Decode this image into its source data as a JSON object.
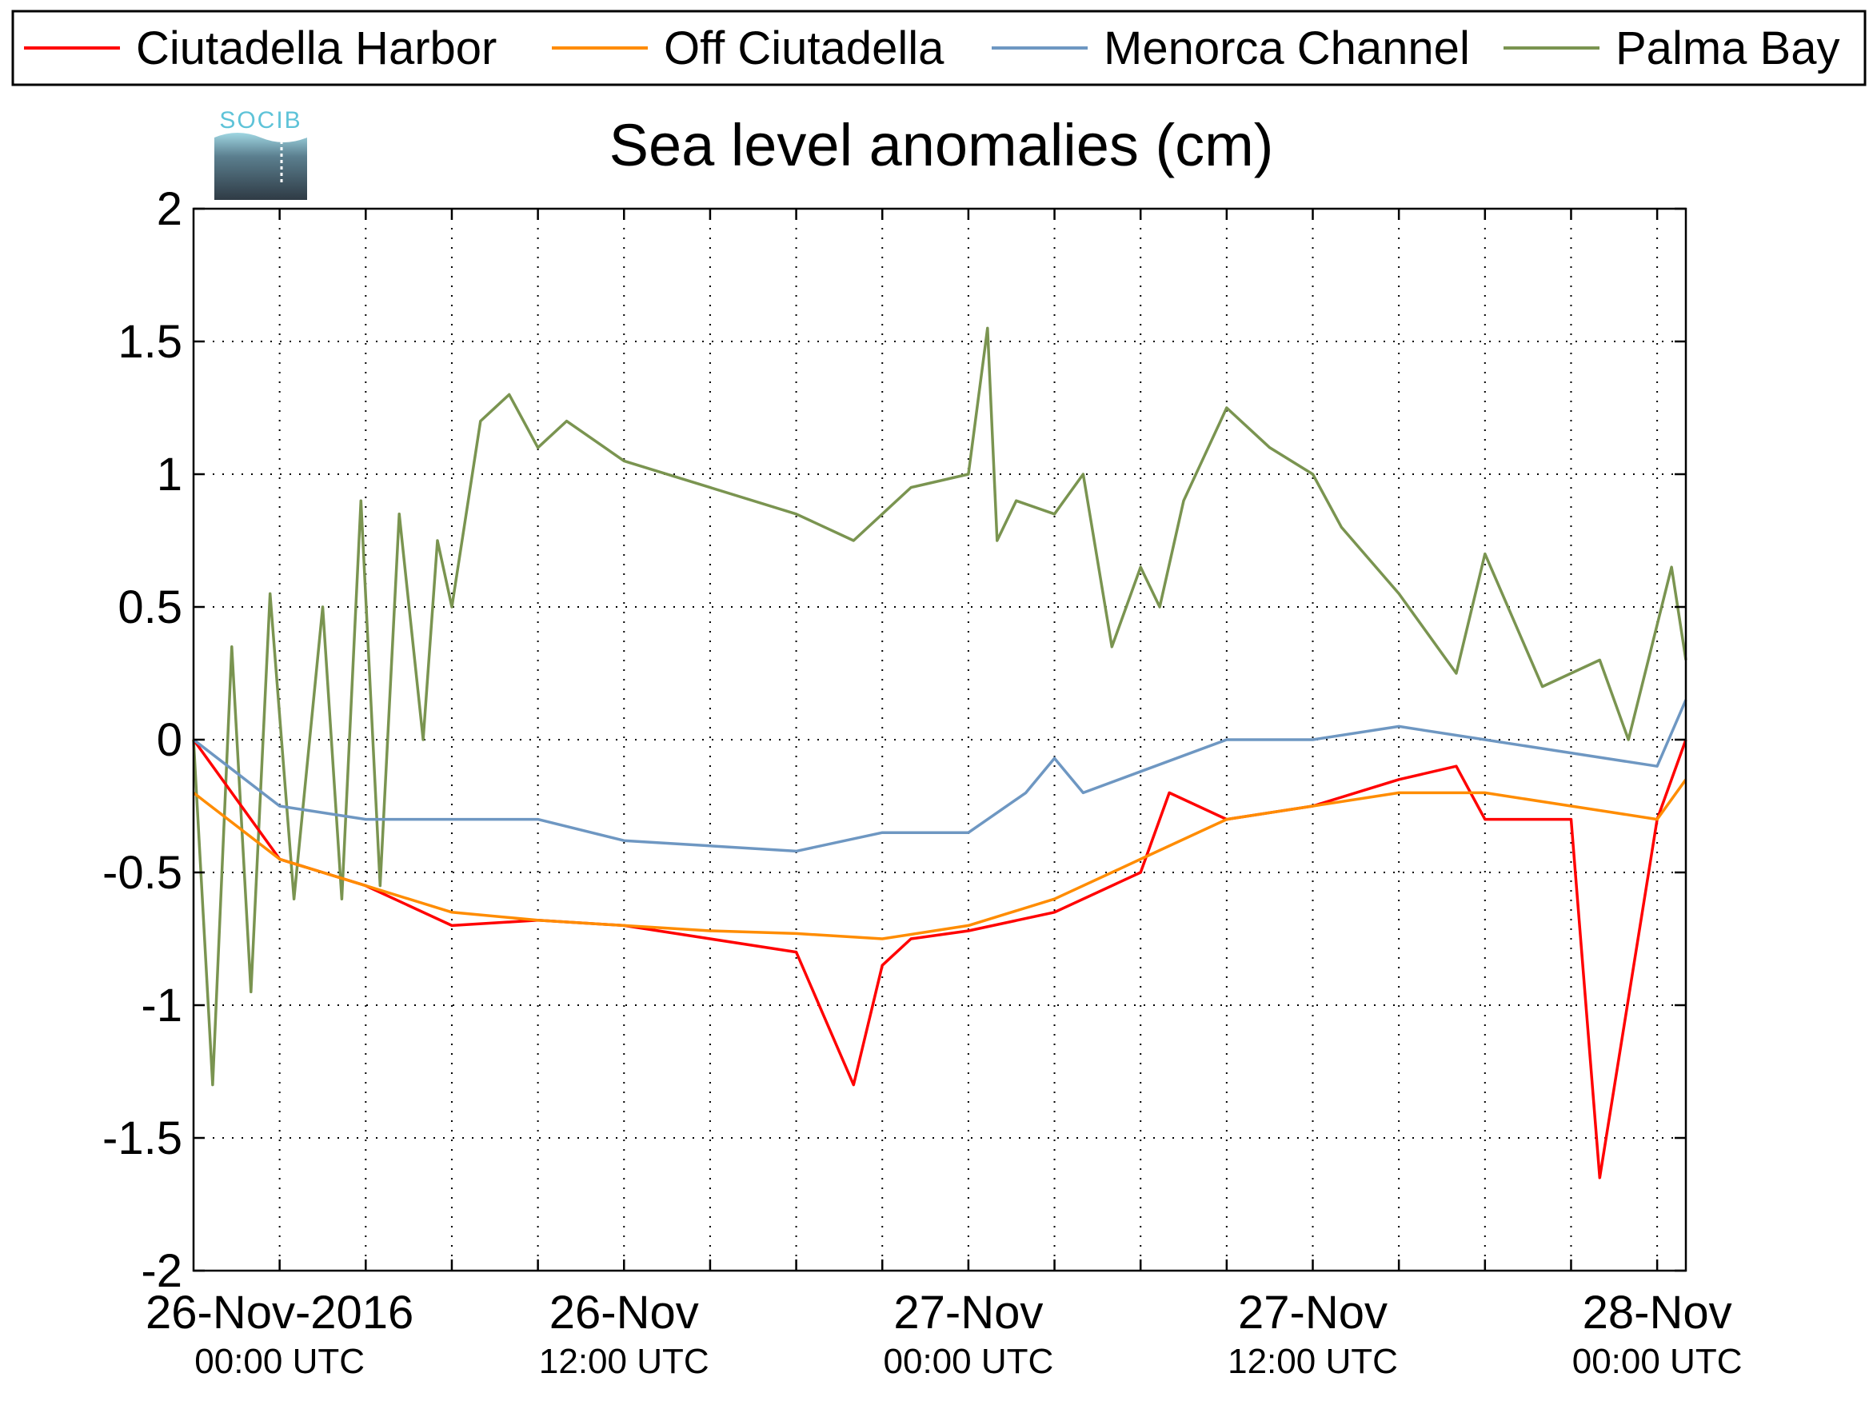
{
  "logo": {
    "text": "SOCIB"
  },
  "chart_data": {
    "type": "line",
    "title": "Sea level anomalies (cm)",
    "xlabel": "",
    "ylabel": "",
    "ylim": [
      -2,
      2
    ],
    "xlim": [
      "2016-11-25T21:00Z",
      "2016-11-28T01:00Z"
    ],
    "y_ticks": [
      -2,
      -1.5,
      -1,
      -0.5,
      0,
      0.5,
      1,
      1.5,
      2
    ],
    "y_tick_labels": [
      "-2",
      "-1.5",
      "-1",
      "-0.5",
      "0",
      "0.5",
      "1",
      "1.5",
      "2"
    ],
    "x_ticks": [
      {
        "time": "2016-11-26T00:00Z",
        "label": "26-Nov-2016",
        "sublabel": "00:00 UTC"
      },
      {
        "time": "2016-11-26T12:00Z",
        "label": "26-Nov",
        "sublabel": "12:00 UTC"
      },
      {
        "time": "2016-11-27T00:00Z",
        "label": "27-Nov",
        "sublabel": "00:00 UTC"
      },
      {
        "time": "2016-11-27T12:00Z",
        "label": "27-Nov",
        "sublabel": "12:00 UTC"
      },
      {
        "time": "2016-11-28T00:00Z",
        "label": "28-Nov",
        "sublabel": "00:00 UTC"
      }
    ],
    "x_minor_ticks": [
      "2016-11-26T03:00Z",
      "2016-11-26T06:00Z",
      "2016-11-26T09:00Z",
      "2016-11-26T15:00Z",
      "2016-11-26T18:00Z",
      "2016-11-26T21:00Z",
      "2016-11-27T03:00Z",
      "2016-11-27T06:00Z",
      "2016-11-27T09:00Z",
      "2016-11-27T15:00Z",
      "2016-11-27T18:00Z",
      "2016-11-27T21:00Z"
    ],
    "grid": true,
    "legend_position": "top",
    "series": [
      {
        "name": "Ciutadella Harbor",
        "color": "#ff0000",
        "x": [
          "2016-11-25T21:00Z",
          "2016-11-26T00:00Z",
          "2016-11-26T03:00Z",
          "2016-11-26T06:00Z",
          "2016-11-26T09:00Z",
          "2016-11-26T12:00Z",
          "2016-11-26T15:00Z",
          "2016-11-26T18:00Z",
          "2016-11-26T20:00Z",
          "2016-11-26T21:00Z",
          "2016-11-26T22:00Z",
          "2016-11-27T00:00Z",
          "2016-11-27T03:00Z",
          "2016-11-27T06:00Z",
          "2016-11-27T07:00Z",
          "2016-11-27T09:00Z",
          "2016-11-27T12:00Z",
          "2016-11-27T15:00Z",
          "2016-11-27T17:00Z",
          "2016-11-27T18:00Z",
          "2016-11-27T21:00Z",
          "2016-11-27T22:00Z",
          "2016-11-28T00:00Z",
          "2016-11-28T01:00Z"
        ],
        "y": [
          0.0,
          -0.45,
          -0.55,
          -0.7,
          -0.68,
          -0.7,
          -0.75,
          -0.8,
          -1.3,
          -0.85,
          -0.75,
          -0.72,
          -0.65,
          -0.5,
          -0.2,
          -0.3,
          -0.25,
          -0.15,
          -0.1,
          -0.3,
          -0.3,
          -1.65,
          -0.3,
          0.0
        ]
      },
      {
        "name": "Off Ciutadella",
        "color": "#ff8c00",
        "x": [
          "2016-11-25T21:00Z",
          "2016-11-26T00:00Z",
          "2016-11-26T03:00Z",
          "2016-11-26T06:00Z",
          "2016-11-26T09:00Z",
          "2016-11-26T12:00Z",
          "2016-11-26T15:00Z",
          "2016-11-26T18:00Z",
          "2016-11-26T21:00Z",
          "2016-11-27T00:00Z",
          "2016-11-27T03:00Z",
          "2016-11-27T06:00Z",
          "2016-11-27T09:00Z",
          "2016-11-27T12:00Z",
          "2016-11-27T15:00Z",
          "2016-11-27T18:00Z",
          "2016-11-27T21:00Z",
          "2016-11-28T00:00Z",
          "2016-11-28T01:00Z"
        ],
        "y": [
          -0.2,
          -0.45,
          -0.55,
          -0.65,
          -0.68,
          -0.7,
          -0.72,
          -0.73,
          -0.75,
          -0.7,
          -0.6,
          -0.45,
          -0.3,
          -0.25,
          -0.2,
          -0.2,
          -0.25,
          -0.3,
          -0.15
        ]
      },
      {
        "name": "Menorca Channel",
        "color": "#6e97c2",
        "x": [
          "2016-11-25T21:00Z",
          "2016-11-26T00:00Z",
          "2016-11-26T03:00Z",
          "2016-11-26T06:00Z",
          "2016-11-26T09:00Z",
          "2016-11-26T12:00Z",
          "2016-11-26T15:00Z",
          "2016-11-26T18:00Z",
          "2016-11-26T21:00Z",
          "2016-11-27T00:00Z",
          "2016-11-27T02:00Z",
          "2016-11-27T03:00Z",
          "2016-11-27T04:00Z",
          "2016-11-27T06:00Z",
          "2016-11-27T09:00Z",
          "2016-11-27T12:00Z",
          "2016-11-27T15:00Z",
          "2016-11-27T18:00Z",
          "2016-11-27T21:00Z",
          "2016-11-28T00:00Z",
          "2016-11-28T01:00Z"
        ],
        "y": [
          0.0,
          -0.25,
          -0.3,
          -0.3,
          -0.3,
          -0.38,
          -0.4,
          -0.42,
          -0.35,
          -0.35,
          -0.2,
          -0.07,
          -0.2,
          -0.12,
          0.0,
          0.0,
          0.05,
          0.0,
          -0.05,
          -0.1,
          0.15
        ]
      },
      {
        "name": "Palma Bay",
        "color": "#7a9450",
        "x": [
          "2016-11-25T21:00Z",
          "2016-11-25T21:40Z",
          "2016-11-25T22:20Z",
          "2016-11-25T23:00Z",
          "2016-11-25T23:40Z",
          "2016-11-26T00:30Z",
          "2016-11-26T01:30Z",
          "2016-11-26T02:10Z",
          "2016-11-26T02:50Z",
          "2016-11-26T03:30Z",
          "2016-11-26T04:10Z",
          "2016-11-26T05:00Z",
          "2016-11-26T05:30Z",
          "2016-11-26T06:00Z",
          "2016-11-26T07:00Z",
          "2016-11-26T08:00Z",
          "2016-11-26T09:00Z",
          "2016-11-26T10:00Z",
          "2016-11-26T12:00Z",
          "2016-11-26T15:00Z",
          "2016-11-26T18:00Z",
          "2016-11-26T20:00Z",
          "2016-11-26T22:00Z",
          "2016-11-27T00:00Z",
          "2016-11-27T00:40Z",
          "2016-11-27T01:00Z",
          "2016-11-27T01:40Z",
          "2016-11-27T03:00Z",
          "2016-11-27T04:00Z",
          "2016-11-27T05:00Z",
          "2016-11-27T06:00Z",
          "2016-11-27T06:40Z",
          "2016-11-27T07:30Z",
          "2016-11-27T09:00Z",
          "2016-11-27T10:30Z",
          "2016-11-27T12:00Z",
          "2016-11-27T13:00Z",
          "2016-11-27T15:00Z",
          "2016-11-27T17:00Z",
          "2016-11-27T18:00Z",
          "2016-11-27T20:00Z",
          "2016-11-27T22:00Z",
          "2016-11-27T23:00Z",
          "2016-11-28T00:30Z",
          "2016-11-28T01:00Z"
        ],
        "y": [
          0.0,
          -1.3,
          0.35,
          -0.95,
          0.55,
          -0.6,
          0.5,
          -0.6,
          0.9,
          -0.55,
          0.85,
          0.0,
          0.75,
          0.5,
          1.2,
          1.3,
          1.1,
          1.2,
          1.05,
          0.95,
          0.85,
          0.75,
          0.95,
          1.0,
          1.55,
          0.75,
          0.9,
          0.85,
          1.0,
          0.35,
          0.65,
          0.5,
          0.9,
          1.25,
          1.1,
          1.0,
          0.8,
          0.55,
          0.25,
          0.7,
          0.2,
          0.3,
          0.0,
          0.65,
          0.3
        ]
      }
    ]
  }
}
